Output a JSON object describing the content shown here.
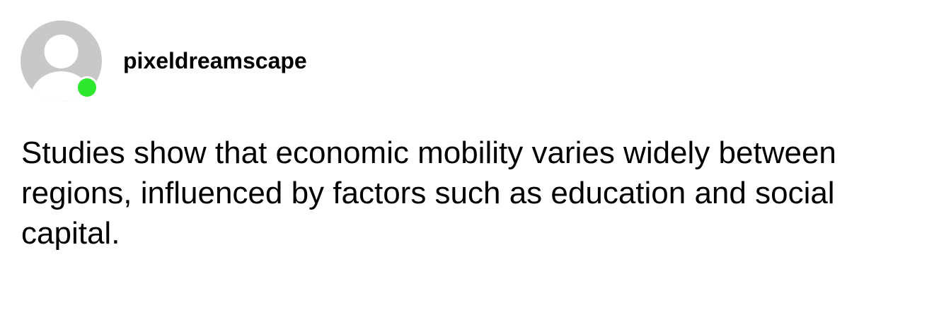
{
  "post": {
    "author": {
      "username": "pixeldreamscape",
      "avatar_icon": "default-user-avatar-icon",
      "online": true
    },
    "body": "Studies show that economic mobility varies widely between regions, influenced by factors such as education and social capital."
  },
  "colors": {
    "background": "#ffffff",
    "text": "#000000",
    "avatar_gray": "#c8c8c8",
    "online_green": "#2ee82e"
  }
}
